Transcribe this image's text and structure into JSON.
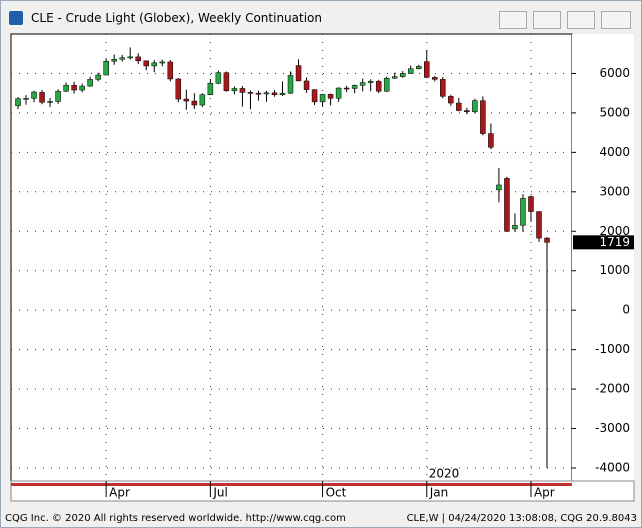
{
  "window_title": "CLE - Crude Light (Globex), Weekly Continuation",
  "footer": {
    "copyright": "CQG Inc. © 2020 All rights reserved worldwide. http://www.cqg.com",
    "status": "CLE,W | 04/24/2020 13:08:08, CQG 20.9.8043"
  },
  "chart_data": {
    "type": "candlestick",
    "categories": [
      null,
      null,
      null,
      null,
      null,
      null,
      null,
      null,
      null,
      null,
      null,
      "Apr",
      null,
      null,
      null,
      null,
      null,
      null,
      null,
      null,
      null,
      null,
      null,
      null,
      "Jul",
      null,
      null,
      null,
      null,
      null,
      null,
      null,
      null,
      null,
      null,
      null,
      null,
      null,
      "Oct",
      null,
      null,
      null,
      null,
      null,
      null,
      null,
      null,
      null,
      null,
      null,
      null,
      "Jan",
      null,
      null,
      null,
      null,
      null,
      null,
      null,
      null,
      null,
      null,
      null,
      null,
      "Apr",
      null,
      null
    ],
    "year_label": "2020",
    "open": [
      5180,
      5360,
      5370,
      5520,
      5270,
      5290,
      5550,
      5700,
      5580,
      5680,
      5850,
      5960,
      6310,
      6360,
      6400,
      6420,
      6320,
      6190,
      6270,
      6290,
      5860,
      5350,
      5300,
      5200,
      5460,
      5750,
      6020,
      5560,
      5620,
      5520,
      5500,
      5480,
      5510,
      5460,
      5500,
      6200,
      5810,
      5590,
      5280,
      5470,
      5370,
      5630,
      5620,
      5700,
      5770,
      5800,
      5550,
      5880,
      5920,
      6000,
      6120,
      6300,
      5900,
      5850,
      5420,
      5250,
      5060,
      5030,
      5310,
      4476,
      3050,
      3340,
      2060,
      2150,
      2880,
      2500,
      1827
    ],
    "high": [
      5400,
      5450,
      5560,
      5580,
      5380,
      5600,
      5770,
      5790,
      5740,
      5920,
      6020,
      6370,
      6480,
      6470,
      6660,
      6510,
      6320,
      6340,
      6350,
      6340,
      5880,
      5590,
      5500,
      5500,
      5860,
      6070,
      6050,
      5670,
      5680,
      5570,
      5560,
      5560,
      5580,
      5800,
      6050,
      6360,
      5900,
      5600,
      5480,
      5490,
      5650,
      5690,
      5720,
      5870,
      5850,
      5840,
      5920,
      6020,
      6060,
      6200,
      6220,
      6590,
      5930,
      5910,
      5460,
      5380,
      5130,
      5360,
      5420,
      4730,
      3600,
      3380,
      2450,
      2940,
      2900,
      2500,
      1850
    ],
    "low": [
      5100,
      5210,
      5270,
      5220,
      5150,
      5230,
      5530,
      5490,
      5520,
      5660,
      5800,
      5960,
      6220,
      6300,
      6350,
      6240,
      6080,
      6030,
      6180,
      5800,
      5270,
      5080,
      5100,
      5150,
      5450,
      5730,
      5540,
      5470,
      5160,
      5090,
      5310,
      5280,
      5410,
      5430,
      5480,
      5810,
      5510,
      5200,
      5170,
      5190,
      5280,
      5530,
      5500,
      5550,
      5550,
      5500,
      5530,
      5860,
      5890,
      5990,
      6100,
      5880,
      5800,
      5370,
      5180,
      5040,
      4970,
      4990,
      4430,
      4080,
      2734,
      1980,
      1990,
      1990,
      2240,
      1730,
      -4000
    ],
    "close": [
      5360,
      5370,
      5530,
      5270,
      5290,
      5550,
      5700,
      5580,
      5680,
      5850,
      5960,
      6310,
      6360,
      6400,
      6420,
      6320,
      6190,
      6270,
      6290,
      5860,
      5350,
      5300,
      5200,
      5460,
      5750,
      6020,
      5560,
      5620,
      5520,
      5500,
      5480,
      5510,
      5460,
      5500,
      5950,
      5810,
      5590,
      5280,
      5470,
      5370,
      5630,
      5620,
      5700,
      5770,
      5800,
      5550,
      5880,
      5920,
      6000,
      6120,
      6180,
      5900,
      5850,
      5420,
      5250,
      5060,
      5030,
      5310,
      4476,
      4128,
      3173,
      2000,
      2150,
      2834,
      2500,
      1827,
      1719
    ],
    "up_color": "#2aa745",
    "down_color": "#a3191c",
    "ylim": [
      -4330,
      7000
    ],
    "yticks": [
      -4000,
      -3000,
      -2000,
      -1000,
      0,
      1000,
      2000,
      3000,
      4000,
      5000,
      6000
    ],
    "grid": true
  }
}
